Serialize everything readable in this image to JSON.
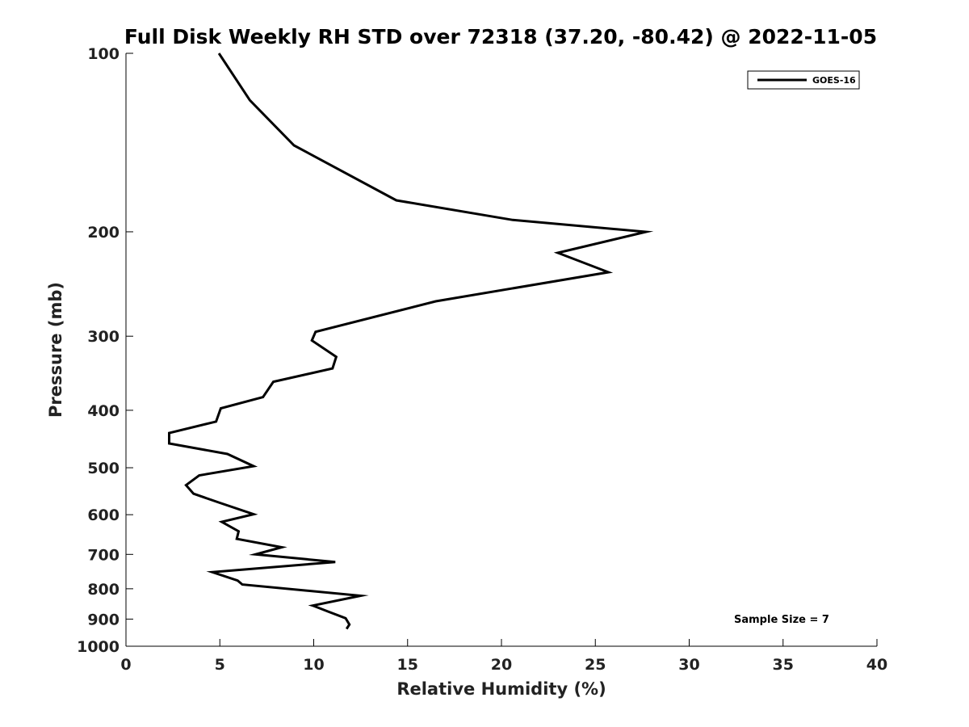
{
  "chart_data": {
    "type": "line",
    "title": "Full Disk Weekly RH STD over 72318 (37.20, -80.42) @ 2022-11-05",
    "xlabel": "Relative Humidity (%)",
    "ylabel": "Pressure (mb)",
    "xlim": [
      0,
      40
    ],
    "ylim": [
      100,
      1000
    ],
    "y_scale": "log",
    "y_inverted": true,
    "grid": false,
    "legend_position": "top-right",
    "x_ticks": [
      "0",
      "5",
      "10",
      "15",
      "20",
      "25",
      "30",
      "35",
      "40"
    ],
    "x_tick_values": [
      0,
      5,
      10,
      15,
      20,
      25,
      30,
      35,
      40
    ],
    "y_ticks": [
      "100",
      "200",
      "300",
      "400",
      "500",
      "600",
      "700",
      "800",
      "900",
      "1000"
    ],
    "y_tick_values": [
      100,
      200,
      300,
      400,
      500,
      600,
      700,
      800,
      900,
      1000
    ],
    "series": [
      {
        "name": "GOES-16",
        "color": "#000000",
        "x": [
          4.95,
          6.6,
          8.95,
          14.4,
          20.6,
          27.7,
          23.0,
          25.7,
          16.5,
          10.1,
          9.9,
          11.2,
          11.0,
          7.85,
          7.3,
          5.05,
          4.8,
          2.3,
          2.3,
          5.4,
          6.8,
          3.9,
          3.2,
          3.6,
          5.0,
          6.8,
          5.1,
          6.0,
          5.9,
          8.3,
          6.9,
          11.15,
          4.6,
          5.95,
          6.2,
          12.5,
          9.95,
          10.0,
          10.8,
          11.7,
          11.9,
          11.75
        ],
        "y": [
          100,
          120,
          143,
          177,
          191,
          200,
          217,
          234,
          262,
          295,
          305,
          325,
          340,
          358,
          380,
          397,
          418,
          437,
          455,
          474,
          497,
          515,
          535,
          553,
          573,
          599,
          617,
          640,
          659,
          681,
          700,
          721,
          750,
          775,
          787,
          822,
          854,
          855,
          875,
          897,
          919,
          935
        ]
      }
    ],
    "annotations": [
      "Sample Size = 7"
    ]
  }
}
